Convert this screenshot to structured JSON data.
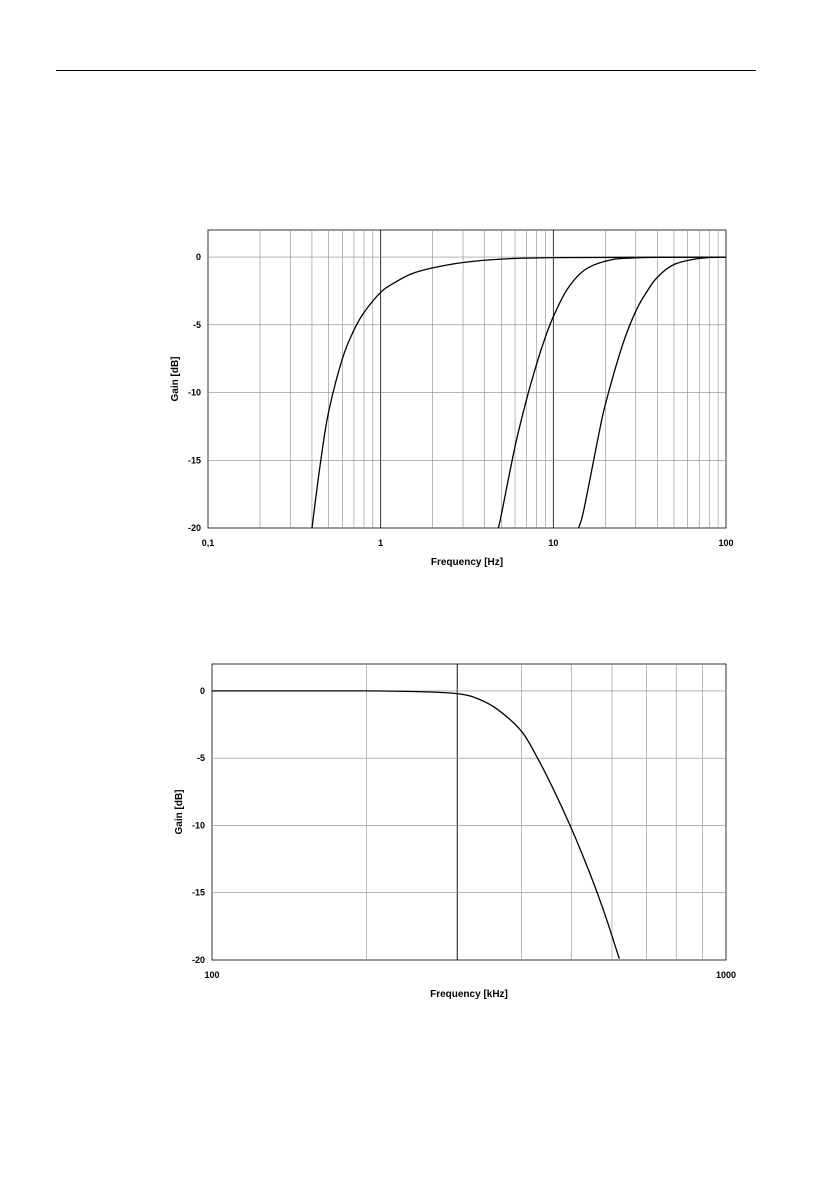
{
  "chart_data": [
    {
      "type": "line",
      "xscale": "log",
      "xlim": [
        0.1,
        100
      ],
      "ylim": [
        -20,
        2
      ],
      "grid": true,
      "xlabel": "Frequency [Hz]",
      "ylabel": "Gain [dB]",
      "xtick_labels": [
        "0,1",
        "1",
        "10",
        "100"
      ],
      "ytick_labels": [
        "0",
        "-5",
        "-10",
        "-15",
        "-20"
      ],
      "series": [
        {
          "x": [
            0.4,
            0.45,
            0.5,
            0.6,
            0.7,
            0.8,
            1,
            1.2,
            1.5,
            2,
            3,
            5,
            10,
            100
          ],
          "values": [
            -20,
            -15,
            -11.4,
            -7.5,
            -5.4,
            -4.1,
            -2.6,
            -1.9,
            -1.25,
            -0.8,
            -0.4,
            -0.15,
            -0.04,
            0
          ]
        },
        {
          "x": [
            4.8,
            5,
            6,
            7,
            8,
            9,
            10,
            12,
            15,
            20,
            30,
            100
          ],
          "values": [
            -20,
            -19,
            -14,
            -10.5,
            -7.9,
            -5.9,
            -4.4,
            -2.4,
            -1,
            -0.3,
            -0.05,
            0
          ]
        },
        {
          "x": [
            14,
            15,
            18,
            20,
            25,
            30,
            35,
            40,
            50,
            70,
            100
          ],
          "values": [
            -20,
            -18.7,
            -13.6,
            -10.9,
            -6.6,
            -4,
            -2.5,
            -1.5,
            -0.55,
            -0.1,
            0
          ]
        }
      ]
    },
    {
      "type": "line",
      "xscale": "log",
      "xlim": [
        100,
        1000
      ],
      "ylim": [
        -20,
        2
      ],
      "grid": true,
      "xlabel": "Frequency [kHz]",
      "ylabel": "Gain [dB]",
      "xtick_labels": [
        "100",
        "1000"
      ],
      "ytick_labels": [
        "0",
        "-5",
        "-10",
        "-15",
        "-20"
      ],
      "series": [
        {
          "x": [
            100,
            200,
            250,
            300,
            330,
            360,
            400,
            430,
            460,
            500,
            540,
            580,
            620
          ],
          "values": [
            0,
            0,
            -0.05,
            -0.2,
            -0.6,
            -1.4,
            -3,
            -5,
            -7.2,
            -10.2,
            -13.3,
            -16.5,
            -19.9
          ]
        }
      ]
    }
  ]
}
